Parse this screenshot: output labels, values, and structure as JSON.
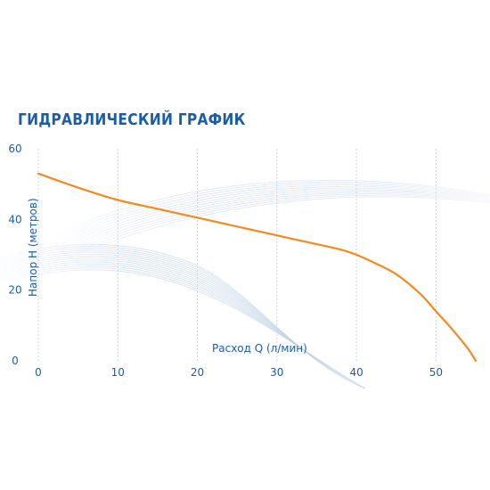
{
  "chart_data": {
    "type": "line",
    "title": "ГИДРАВЛИЧЕСКИЙ ГРАФИК",
    "xlabel": "Расход Q (л/мин)",
    "ylabel": "Напор H (метров)",
    "xlim": [
      0,
      55
    ],
    "ylim": [
      0,
      60
    ],
    "xticks": [
      0,
      10,
      20,
      30,
      40,
      50
    ],
    "yticks": [
      0,
      20,
      40,
      60
    ],
    "grid": "vertical",
    "series": [
      {
        "x": [
          0,
          5,
          10,
          15,
          20,
          25,
          30,
          35,
          38,
          40,
          42,
          45,
          48,
          50,
          52,
          54,
          55
        ],
        "y": [
          53,
          49,
          45.5,
          43,
          40.5,
          38,
          35.5,
          33,
          31.5,
          30,
          28,
          24.5,
          19,
          14,
          9,
          3.5,
          0
        ],
        "color": "#f58a1f"
      }
    ]
  }
}
